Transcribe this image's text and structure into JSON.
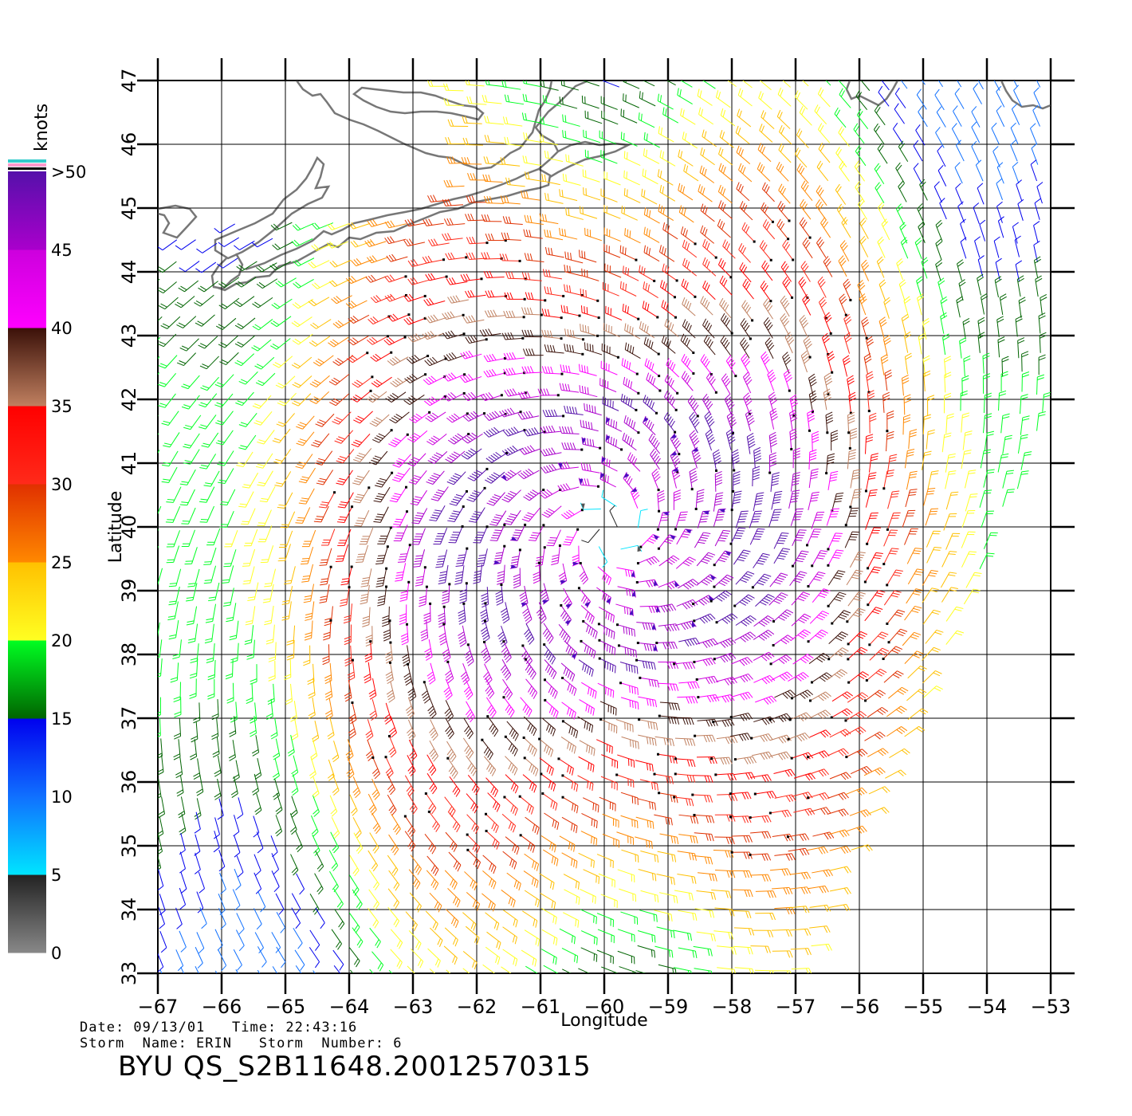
{
  "map": {
    "xlabel": "Longitude",
    "ylabel": "Latitude",
    "lon_range": [
      -67,
      -53
    ],
    "lat_range": [
      33,
      47
    ],
    "lon_ticks": [
      "-67",
      "-66",
      "-65",
      "-64",
      "-63",
      "-62",
      "-61",
      "-60",
      "-59",
      "-58",
      "-57",
      "-56",
      "-55",
      "-54",
      "-53"
    ],
    "lat_ticks": [
      "33",
      "34",
      "35",
      "36",
      "37",
      "38",
      "39",
      "40",
      "41",
      "42",
      "43",
      "44",
      "45",
      "46",
      "47"
    ],
    "storm_center": {
      "lon": -59.9,
      "lat": 39.9
    },
    "grid": true,
    "coastline_color": "#777777"
  },
  "legend": {
    "unit": "knots",
    "labels": [
      {
        "text": ">50",
        "value": 50
      },
      {
        "text": "45",
        "value": 45
      },
      {
        "text": "40",
        "value": 40
      },
      {
        "text": "35",
        "value": 35
      },
      {
        "text": "30",
        "value": 30
      },
      {
        "text": "25",
        "value": 25
      },
      {
        "text": "20",
        "value": 20
      },
      {
        "text": "15",
        "value": 15
      },
      {
        "text": "10",
        "value": 10
      },
      {
        "text": "5",
        "value": 5
      },
      {
        "text": "0",
        "value": 0
      }
    ],
    "color_bands": [
      {
        "from": 0,
        "to": 5,
        "colors": [
          "#888888",
          "#222222"
        ]
      },
      {
        "from": 5,
        "to": 10,
        "colors": [
          "#00e5ff",
          "#1070ff"
        ]
      },
      {
        "from": 10,
        "to": 15,
        "colors": [
          "#1070ff",
          "#0000ee"
        ]
      },
      {
        "from": 15,
        "to": 20,
        "colors": [
          "#006400",
          "#00ff22"
        ]
      },
      {
        "from": 20,
        "to": 25,
        "colors": [
          "#ffff22",
          "#ffc000"
        ]
      },
      {
        "from": 25,
        "to": 30,
        "colors": [
          "#ff8800",
          "#e03000"
        ]
      },
      {
        "from": 30,
        "to": 35,
        "colors": [
          "#ff2a1a",
          "#ff0000"
        ]
      },
      {
        "from": 35,
        "to": 40,
        "colors": [
          "#c08060",
          "#3a1008"
        ]
      },
      {
        "from": 40,
        "to": 45,
        "colors": [
          "#ff00ff",
          "#cc00dd"
        ]
      },
      {
        "from": 45,
        "to": 50,
        "colors": [
          "#aa00cc",
          "#5510aa"
        ]
      }
    ],
    "bar_caps": [
      "#33cccc",
      "#ff99cc"
    ]
  },
  "footer": {
    "date_line": "Date: 09/13/01   Time: 22:43:16",
    "storm_line": "Storm  Name: ERIN   Storm  Number: 6",
    "title": "BYU  QS_S2B11648.20012570315"
  }
}
